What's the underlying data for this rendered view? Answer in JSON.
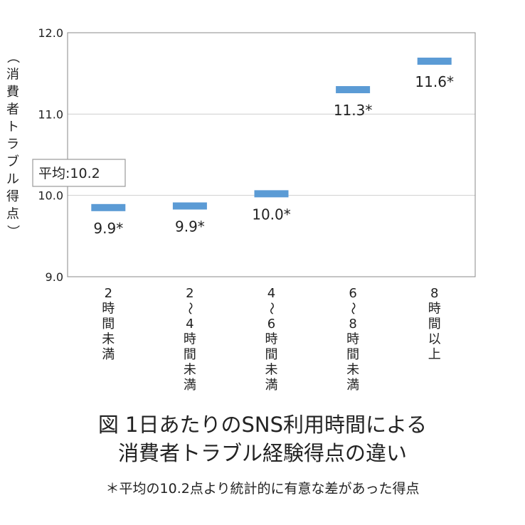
{
  "chart_data": {
    "type": "scatter",
    "ylabel": "（消費者トラブル得点）",
    "ylim": [
      9.0,
      12.0
    ],
    "yticks": [
      "9.0",
      "10.0",
      "11.0",
      "12.0"
    ],
    "categories": [
      "2時間未満",
      "2〜4時間未満",
      "4〜6時間未満",
      "6〜8時間未満",
      "8時間以上"
    ],
    "values": [
      9.85,
      9.87,
      10.02,
      11.3,
      11.65
    ],
    "data_labels": [
      "9.9",
      "9.9",
      "10.0",
      "11.3",
      "11.6"
    ],
    "significance_mark": "*",
    "average_label": "平均:10.2",
    "average_value": 10.2,
    "grid": true,
    "marker_color": "#5b9bd5"
  },
  "caption": {
    "line1": "図 1日あたりのSNS利用時間による",
    "line2": "消費者トラブル経験得点の違い",
    "note": "＊平均の10.2点より統計的に有意な差があった得点"
  }
}
